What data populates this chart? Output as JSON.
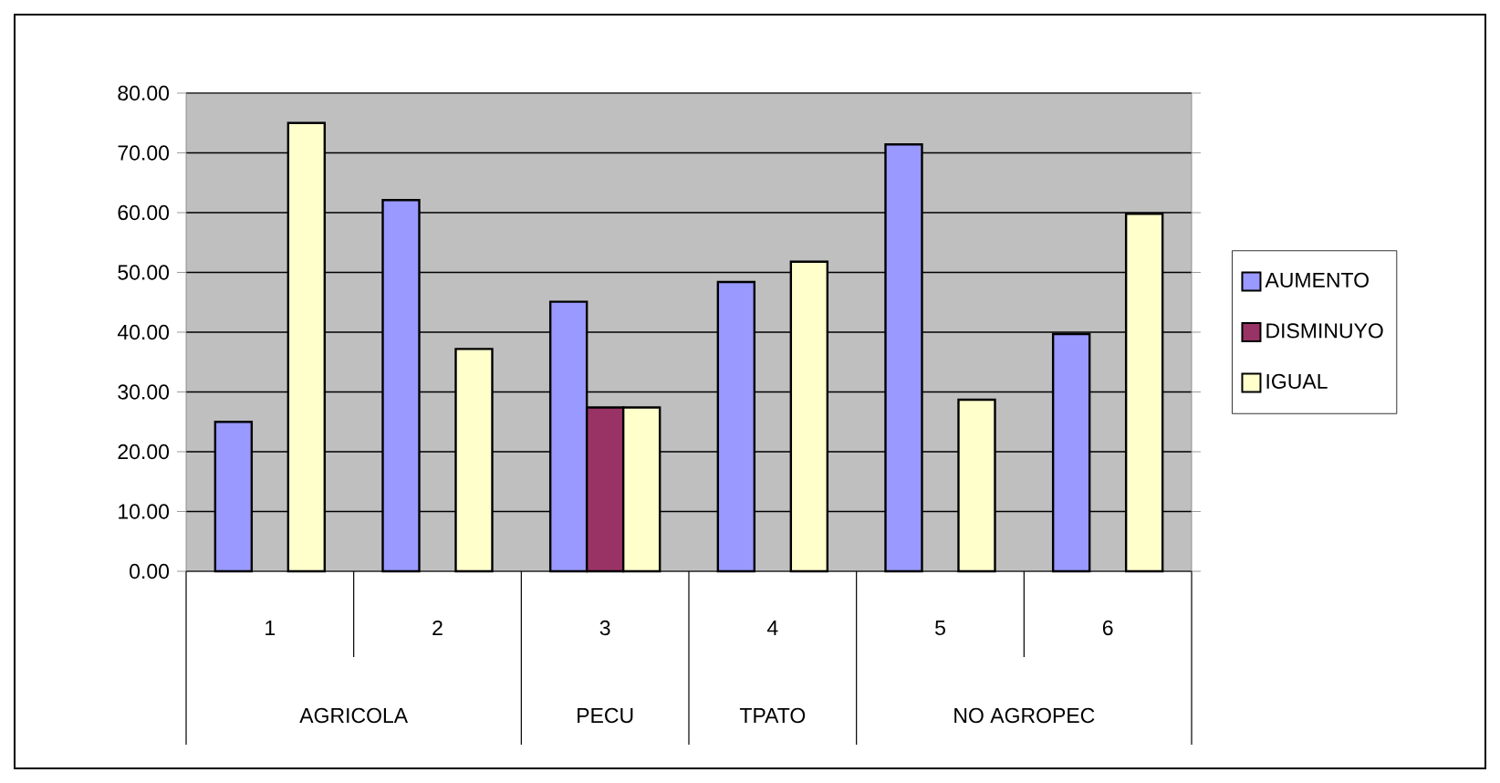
{
  "chart_data": {
    "type": "bar",
    "categories": [
      "1",
      "2",
      "3",
      "4",
      "5",
      "6"
    ],
    "series": [
      {
        "name": "AUMENTO",
        "color": "#9999ff",
        "values": [
          25.0,
          62.1,
          45.1,
          48.4,
          71.4,
          39.7
        ]
      },
      {
        "name": "DISMINUYO",
        "color": "#993366",
        "values": [
          null,
          null,
          27.4,
          null,
          null,
          null
        ]
      },
      {
        "name": "IGUAL",
        "color": "#ffffcc",
        "values": [
          75.0,
          37.2,
          27.4,
          51.8,
          28.7,
          59.8
        ]
      }
    ],
    "ylim": [
      0,
      80
    ],
    "yticks": [
      {
        "value": 0,
        "label": "0.00"
      },
      {
        "value": 10,
        "label": "10.00"
      },
      {
        "value": 20,
        "label": "20.00"
      },
      {
        "value": 30,
        "label": "30.00"
      },
      {
        "value": 40,
        "label": "40.00"
      },
      {
        "value": 50,
        "label": "50.00"
      },
      {
        "value": 60,
        "label": "60.00"
      },
      {
        "value": 70,
        "label": "70.00"
      },
      {
        "value": 80,
        "label": "80.00"
      }
    ],
    "grid": "y",
    "legend": "right",
    "annotations": [
      "AGRICOLA",
      "PECU",
      "TPATO",
      "NO AGROPEC"
    ]
  }
}
